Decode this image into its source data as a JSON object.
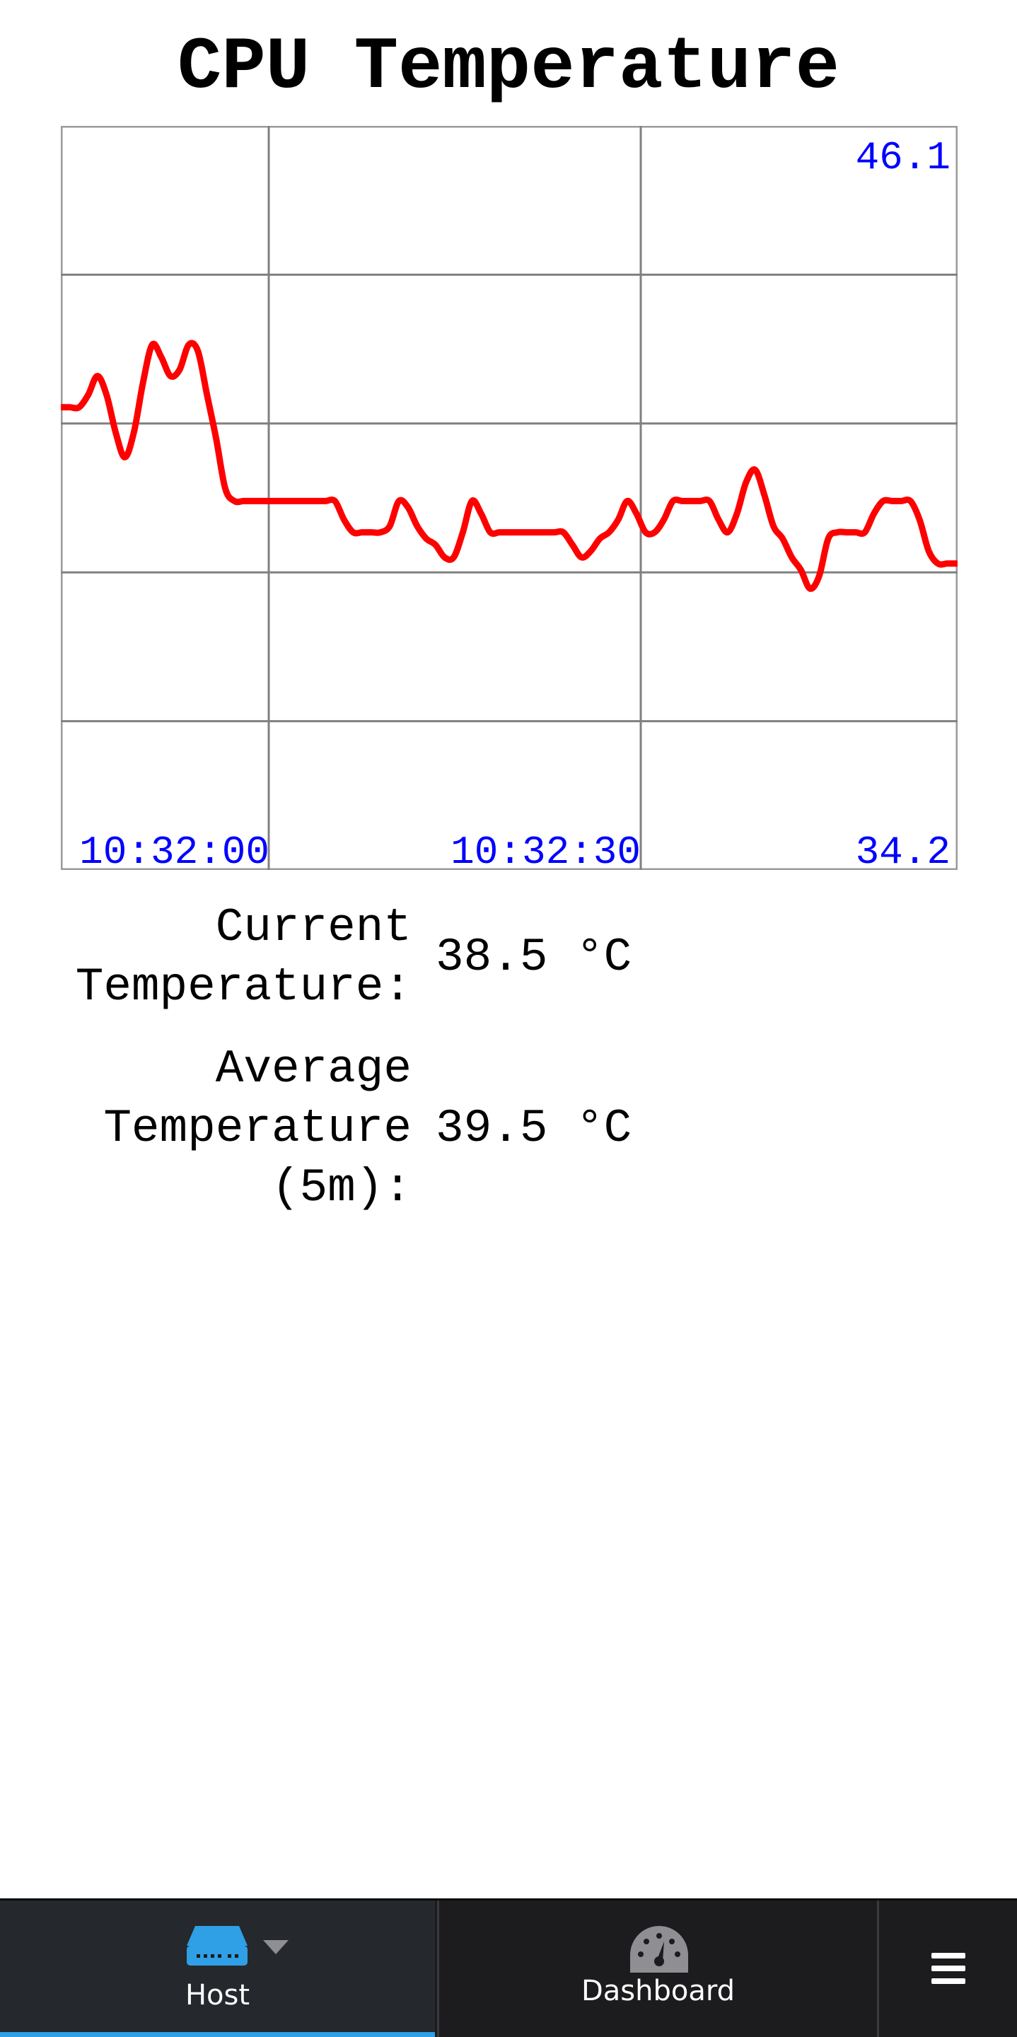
{
  "title": "CPU Temperature",
  "chart_data": {
    "type": "line",
    "title": "CPU Temperature",
    "y_max_label": "46.1",
    "y_min_label": "34.2",
    "ylim": [
      34.2,
      46.1
    ],
    "x_tick_labels": [
      "10:32:00",
      "10:32:30"
    ],
    "line_color": "#ff0000",
    "label_color": "#0000ff",
    "grid": true,
    "series": [
      {
        "values": [
          41.6,
          41.6,
          41.6,
          41.8,
          42.1,
          41.8,
          41.2,
          40.8,
          41.2,
          42.0,
          42.6,
          42.4,
          42.1,
          42.2,
          42.6,
          42.5,
          41.8,
          41.1,
          40.3,
          40.1,
          40.1,
          40.1,
          40.1,
          40.1,
          40.1,
          40.1,
          40.1,
          40.1,
          40.1,
          40.1,
          40.1,
          39.8,
          39.6,
          39.6,
          39.6,
          39.6,
          39.7,
          40.1,
          40.0,
          39.7,
          39.5,
          39.4,
          39.2,
          39.2,
          39.6,
          40.1,
          39.9,
          39.6,
          39.6,
          39.6,
          39.6,
          39.6,
          39.6,
          39.6,
          39.6,
          39.6,
          39.4,
          39.2,
          39.3,
          39.5,
          39.6,
          39.8,
          40.1,
          39.9,
          39.6,
          39.6,
          39.8,
          40.1,
          40.1,
          40.1,
          40.1,
          40.1,
          39.8,
          39.6,
          39.9,
          40.4,
          40.6,
          40.2,
          39.7,
          39.5,
          39.2,
          39.0,
          38.7,
          38.9,
          39.5,
          39.6,
          39.6,
          39.6,
          39.6,
          39.9,
          40.1,
          40.1,
          40.1,
          40.1,
          39.8,
          39.3,
          39.1,
          39.1,
          39.1
        ]
      }
    ]
  },
  "stats": {
    "current_label": "Current Temperature:",
    "current_value": "38.5 °C",
    "average_label": "Average Temperature (5m):",
    "average_value": "39.5 °C"
  },
  "tabbar": {
    "host_label": "Host",
    "dashboard_label": "Dashboard",
    "host_icon": "server-icon",
    "dashboard_icon": "gauge-icon",
    "menu_icon": "hamburger-menu-icon",
    "accent_color": "#2f9fe6"
  }
}
